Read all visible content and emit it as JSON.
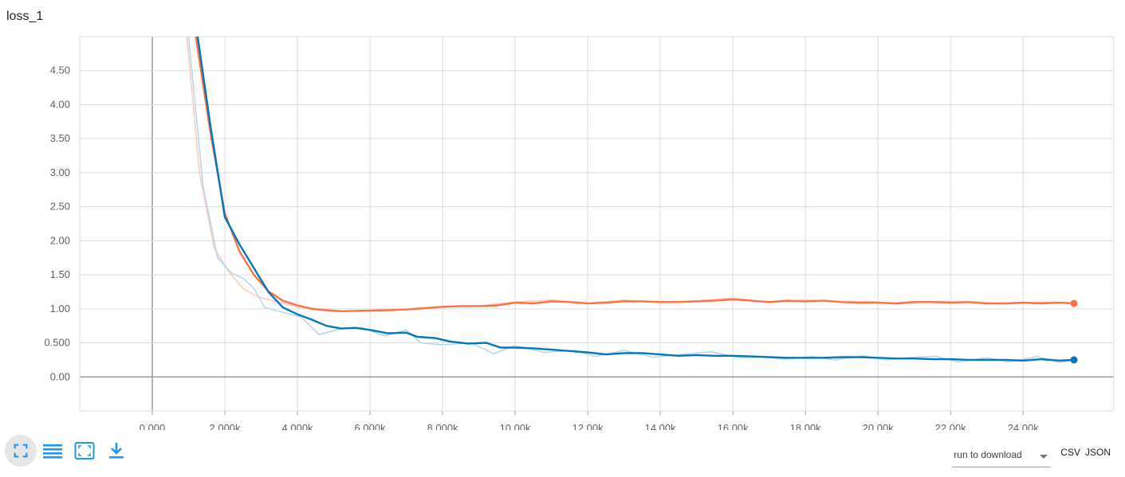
{
  "chart_data": {
    "title": "loss_1",
    "type": "line",
    "xlim": [
      -2000,
      26500
    ],
    "ylim": [
      -0.5,
      5.0
    ],
    "x_ticks": [
      0,
      2000,
      4000,
      6000,
      8000,
      10000,
      12000,
      14000,
      16000,
      18000,
      20000,
      22000,
      24000
    ],
    "x_tick_labels": [
      "0.000",
      "2.000k",
      "4.000k",
      "6.000k",
      "8.000k",
      "10.00k",
      "12.00k",
      "14.00k",
      "16.00k",
      "18.00k",
      "20.00k",
      "22.00k",
      "24.00k"
    ],
    "y_ticks": [
      0,
      0.5,
      1.0,
      1.5,
      2.0,
      2.5,
      3.0,
      3.5,
      4.0,
      4.5
    ],
    "y_tick_labels": [
      "0.00",
      "0.500",
      "1.00",
      "1.50",
      "2.00",
      "2.50",
      "3.00",
      "3.50",
      "4.00",
      "4.50"
    ],
    "grid": true,
    "series": [
      {
        "color": "#ff7043",
        "raw_color": "#ffccbc",
        "smoothed": [
          [
            1200,
            5.0
          ],
          [
            1600,
            3.6
          ],
          [
            2000,
            2.4
          ],
          [
            2400,
            1.85
          ],
          [
            2800,
            1.5
          ],
          [
            3200,
            1.26
          ],
          [
            3600,
            1.12
          ],
          [
            4000,
            1.05
          ],
          [
            4400,
            1.0
          ],
          [
            4800,
            0.98
          ],
          [
            5200,
            0.965
          ],
          [
            5600,
            0.97
          ],
          [
            6000,
            0.975
          ],
          [
            6500,
            0.98
          ],
          [
            7000,
            0.99
          ],
          [
            7500,
            1.01
          ],
          [
            8000,
            1.03
          ],
          [
            8500,
            1.04
          ],
          [
            9000,
            1.04
          ],
          [
            9500,
            1.05
          ],
          [
            10000,
            1.09
          ],
          [
            10500,
            1.08
          ],
          [
            11000,
            1.11
          ],
          [
            11500,
            1.1
          ],
          [
            12000,
            1.08
          ],
          [
            12500,
            1.09
          ],
          [
            13000,
            1.11
          ],
          [
            13500,
            1.11
          ],
          [
            14000,
            1.1
          ],
          [
            14500,
            1.1
          ],
          [
            15000,
            1.11
          ],
          [
            15500,
            1.12
          ],
          [
            16000,
            1.14
          ],
          [
            16500,
            1.12
          ],
          [
            17000,
            1.1
          ],
          [
            17500,
            1.12
          ],
          [
            18000,
            1.11
          ],
          [
            18500,
            1.12
          ],
          [
            19000,
            1.1
          ],
          [
            19500,
            1.09
          ],
          [
            20000,
            1.09
          ],
          [
            20500,
            1.08
          ],
          [
            21000,
            1.1
          ],
          [
            21500,
            1.1
          ],
          [
            22000,
            1.09
          ],
          [
            22500,
            1.1
          ],
          [
            23000,
            1.08
          ],
          [
            23500,
            1.08
          ],
          [
            24000,
            1.09
          ],
          [
            24500,
            1.08
          ],
          [
            25000,
            1.09
          ],
          [
            25400,
            1.08
          ]
        ],
        "raw": [
          [
            950,
            5.0
          ],
          [
            1300,
            3.0
          ],
          [
            1700,
            1.9
          ],
          [
            2100,
            1.55
          ],
          [
            2500,
            1.3
          ],
          [
            2900,
            1.18
          ],
          [
            3300,
            1.12
          ],
          [
            3700,
            1.07
          ],
          [
            4100,
            1.02
          ],
          [
            4600,
            0.98
          ],
          [
            5200,
            0.96
          ],
          [
            6000,
            0.975
          ],
          [
            7000,
            0.99
          ],
          [
            8000,
            1.03
          ],
          [
            9000,
            1.04
          ],
          [
            10000,
            1.1
          ],
          [
            11000,
            1.13
          ],
          [
            12000,
            1.08
          ],
          [
            13000,
            1.13
          ],
          [
            14000,
            1.09
          ],
          [
            15000,
            1.12
          ],
          [
            16000,
            1.16
          ],
          [
            17000,
            1.09
          ],
          [
            18000,
            1.13
          ],
          [
            19000,
            1.1
          ],
          [
            19800,
            1.11
          ],
          [
            20500,
            1.07
          ],
          [
            21500,
            1.11
          ],
          [
            22500,
            1.1
          ],
          [
            23500,
            1.07
          ],
          [
            24500,
            1.1
          ],
          [
            25400,
            1.08
          ]
        ],
        "last": [
          25400,
          1.08
        ]
      },
      {
        "color": "#0277bd",
        "raw_color": "#b3d7ee",
        "smoothed": [
          [
            1250,
            5.0
          ],
          [
            1600,
            3.7
          ],
          [
            2000,
            2.35
          ],
          [
            2400,
            1.95
          ],
          [
            2800,
            1.6
          ],
          [
            3200,
            1.25
          ],
          [
            3600,
            1.02
          ],
          [
            4000,
            0.92
          ],
          [
            4400,
            0.84
          ],
          [
            4800,
            0.75
          ],
          [
            5200,
            0.71
          ],
          [
            5600,
            0.72
          ],
          [
            6000,
            0.69
          ],
          [
            6500,
            0.64
          ],
          [
            7000,
            0.65
          ],
          [
            7300,
            0.59
          ],
          [
            7800,
            0.57
          ],
          [
            8200,
            0.52
          ],
          [
            8700,
            0.49
          ],
          [
            9200,
            0.5
          ],
          [
            9600,
            0.43
          ],
          [
            10000,
            0.43
          ],
          [
            10500,
            0.42
          ],
          [
            11000,
            0.4
          ],
          [
            11500,
            0.38
          ],
          [
            12000,
            0.36
          ],
          [
            12500,
            0.33
          ],
          [
            13000,
            0.35
          ],
          [
            13500,
            0.35
          ],
          [
            14000,
            0.33
          ],
          [
            14500,
            0.31
          ],
          [
            15000,
            0.32
          ],
          [
            15500,
            0.31
          ],
          [
            16000,
            0.31
          ],
          [
            16500,
            0.3
          ],
          [
            17000,
            0.29
          ],
          [
            17500,
            0.28
          ],
          [
            18000,
            0.28
          ],
          [
            18500,
            0.28
          ],
          [
            19000,
            0.29
          ],
          [
            19500,
            0.29
          ],
          [
            20000,
            0.28
          ],
          [
            20500,
            0.27
          ],
          [
            21000,
            0.27
          ],
          [
            21500,
            0.26
          ],
          [
            22000,
            0.26
          ],
          [
            22500,
            0.25
          ],
          [
            23000,
            0.25
          ],
          [
            23500,
            0.25
          ],
          [
            24000,
            0.24
          ],
          [
            24500,
            0.26
          ],
          [
            25000,
            0.24
          ],
          [
            25400,
            0.25
          ]
        ],
        "raw": [
          [
            1000,
            5.0
          ],
          [
            1400,
            2.8
          ],
          [
            1800,
            1.75
          ],
          [
            2200,
            1.52
          ],
          [
            2500,
            1.45
          ],
          [
            2800,
            1.3
          ],
          [
            3100,
            1.02
          ],
          [
            3600,
            0.95
          ],
          [
            4100,
            0.88
          ],
          [
            4600,
            0.62
          ],
          [
            5200,
            0.71
          ],
          [
            5800,
            0.72
          ],
          [
            6400,
            0.6
          ],
          [
            7000,
            0.69
          ],
          [
            7400,
            0.5
          ],
          [
            8000,
            0.47
          ],
          [
            8800,
            0.5
          ],
          [
            9400,
            0.34
          ],
          [
            10000,
            0.46
          ],
          [
            10800,
            0.36
          ],
          [
            11600,
            0.39
          ],
          [
            12200,
            0.3
          ],
          [
            13000,
            0.39
          ],
          [
            13800,
            0.29
          ],
          [
            14600,
            0.33
          ],
          [
            15400,
            0.37
          ],
          [
            16200,
            0.28
          ],
          [
            16800,
            0.3
          ],
          [
            17400,
            0.26
          ],
          [
            18200,
            0.3
          ],
          [
            18800,
            0.25
          ],
          [
            19600,
            0.31
          ],
          [
            20200,
            0.25
          ],
          [
            21000,
            0.29
          ],
          [
            21600,
            0.3
          ],
          [
            22200,
            0.22
          ],
          [
            23000,
            0.28
          ],
          [
            23600,
            0.22
          ],
          [
            24400,
            0.3
          ],
          [
            25000,
            0.21
          ],
          [
            25400,
            0.25
          ]
        ],
        "last": [
          25400,
          0.25
        ]
      }
    ]
  },
  "toolbar": {
    "fullscreen_icon": "fullscreen-icon",
    "list_icon": "list-icon",
    "fit_domain_icon": "fit-domain-icon",
    "download_icon": "download-icon",
    "accent": "#2196f3"
  },
  "download": {
    "select_placeholder": "run to download",
    "csv_label": "CSV",
    "json_label": "JSON"
  }
}
